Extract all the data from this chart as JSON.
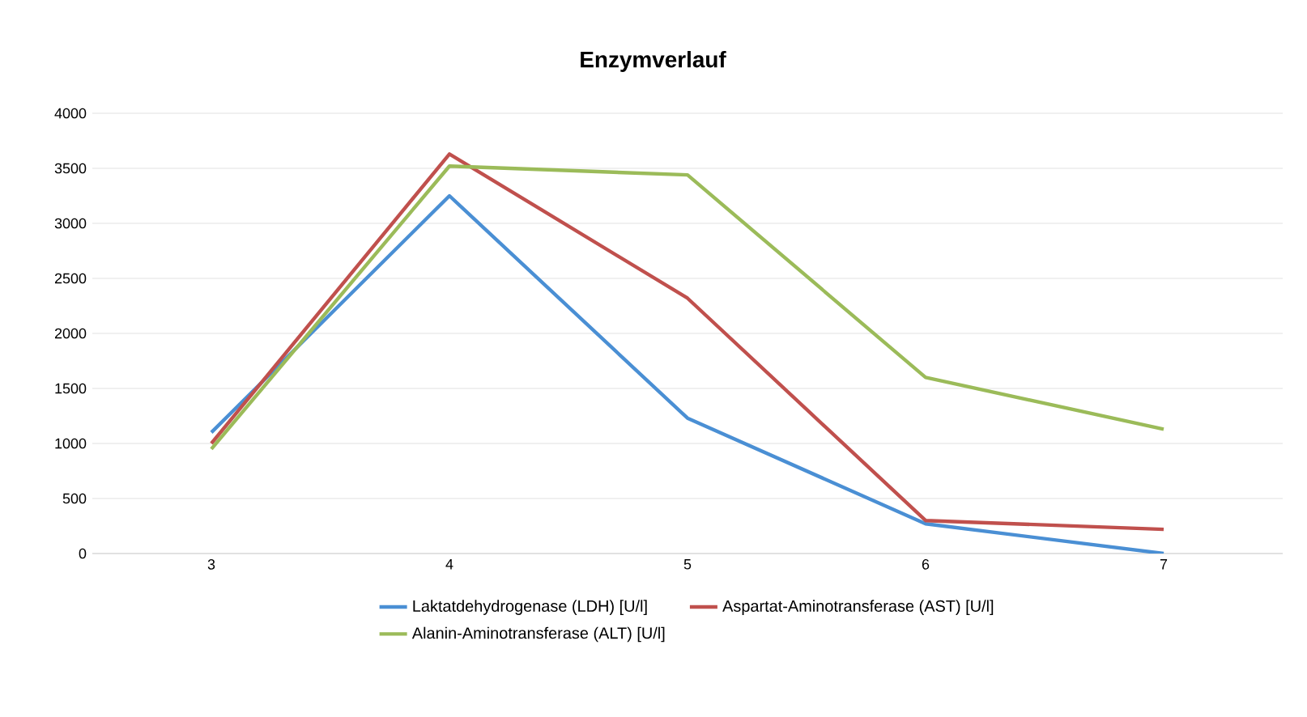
{
  "chart_data": {
    "type": "line",
    "title": "Enzymverlauf",
    "categories": [
      "3",
      "4",
      "5",
      "6",
      "7"
    ],
    "series": [
      {
        "name": "Laktatdehydrogenase (LDH) [U/l]",
        "color": "#4a8fd4",
        "values": [
          1100,
          3250,
          1230,
          270,
          0
        ]
      },
      {
        "name": "Aspartat-Aminotransferase (AST) [U/l]",
        "color": "#c0504d",
        "values": [
          1000,
          3630,
          2320,
          300,
          220
        ]
      },
      {
        "name": "Alanin-Aminotransferase (ALT) [U/l]",
        "color": "#9bbb59",
        "values": [
          950,
          3520,
          3440,
          1600,
          1130
        ]
      }
    ],
    "ylim": [
      0,
      4000
    ],
    "yticks": [
      0,
      500,
      1000,
      1500,
      2000,
      2500,
      3000,
      3500,
      4000
    ],
    "grid": "y",
    "legend": "bottom",
    "marker": "none",
    "line_style": "solid"
  }
}
